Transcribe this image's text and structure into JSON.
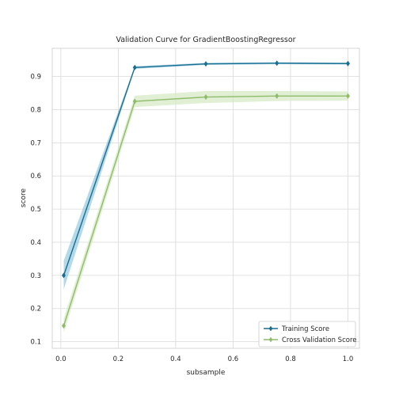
{
  "chart_data": {
    "type": "line",
    "title": "Validation Curve for GradientBoostingRegressor",
    "xlabel": "subsample",
    "ylabel": "score",
    "xlim": [
      -0.03,
      1.04
    ],
    "ylim": [
      0.08,
      0.985
    ],
    "xticks": [
      0.0,
      0.2,
      0.4,
      0.6,
      0.8,
      1.0
    ],
    "xtick_labels": [
      "0.0",
      "0.2",
      "0.4",
      "0.6",
      "0.8",
      "1.0"
    ],
    "yticks": [
      0.1,
      0.2,
      0.3,
      0.4,
      0.5,
      0.6,
      0.7,
      0.8,
      0.9
    ],
    "ytick_labels": [
      "0.1",
      "0.2",
      "0.3",
      "0.4",
      "0.5",
      "0.6",
      "0.7",
      "0.8",
      "0.9"
    ],
    "grid": true,
    "legend_position": "lower-right",
    "x": [
      0.01,
      0.2575,
      0.505,
      0.7525,
      1.0
    ],
    "series": [
      {
        "name": "Training Score",
        "color": "#1a6f8e",
        "band_color": "#74b9d8",
        "values": [
          0.3,
          0.927,
          0.938,
          0.94,
          0.939
        ],
        "lower": [
          0.258,
          0.923,
          0.935,
          0.937,
          0.936
        ],
        "upper": [
          0.344,
          0.931,
          0.941,
          0.943,
          0.942
        ]
      },
      {
        "name": "Cross Validation Score",
        "color": "#8fbc6b",
        "band_color": "#d4e8c2",
        "values": [
          0.148,
          0.825,
          0.838,
          0.841,
          0.841
        ],
        "lower": [
          0.127,
          0.808,
          0.82,
          0.826,
          0.827
        ],
        "upper": [
          0.17,
          0.842,
          0.856,
          0.856,
          0.855
        ]
      }
    ]
  }
}
